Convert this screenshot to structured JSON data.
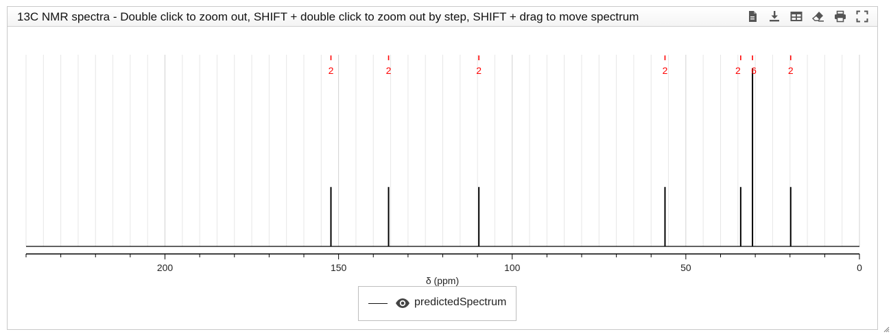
{
  "header": {
    "title": "13C NMR spectra - Double click to zoom out, SHIFT + double click to zoom out by step, SHIFT + drag to move spectrum",
    "tools": [
      {
        "name": "export-document-icon"
      },
      {
        "name": "download-icon"
      },
      {
        "name": "table-icon"
      },
      {
        "name": "eraser-icon"
      },
      {
        "name": "print-icon"
      },
      {
        "name": "fullscreen-icon"
      }
    ]
  },
  "legend": {
    "label": "predictedSpectrum",
    "icon": "eye-icon"
  },
  "colors": {
    "spectrum": "#000000",
    "peak_label": "#ff0000",
    "grid": "#e6e6e6",
    "axis": "#000000"
  },
  "chart_data": {
    "type": "line",
    "xlabel": "δ (ppm)",
    "ylabel": "",
    "xlim": [
      240,
      0
    ],
    "x_reversed": true,
    "x_ticks": [
      200,
      150,
      100,
      50,
      0
    ],
    "grid": "vertical",
    "legend_position": "bottom-center",
    "series": [
      {
        "name": "predictedSpectrum",
        "peaks": [
          {
            "x": 152.2,
            "intensity": 0.31,
            "label": "2"
          },
          {
            "x": 135.6,
            "intensity": 0.31,
            "label": "2"
          },
          {
            "x": 109.6,
            "intensity": 0.31,
            "label": "2"
          },
          {
            "x": 56.0,
            "intensity": 0.31,
            "label": "2"
          },
          {
            "x": 34.2,
            "intensity": 0.31,
            "label": "2"
          },
          {
            "x": 30.8,
            "intensity": 0.93,
            "label": "6"
          },
          {
            "x": 19.8,
            "intensity": 0.31,
            "label": "2"
          }
        ]
      }
    ]
  }
}
